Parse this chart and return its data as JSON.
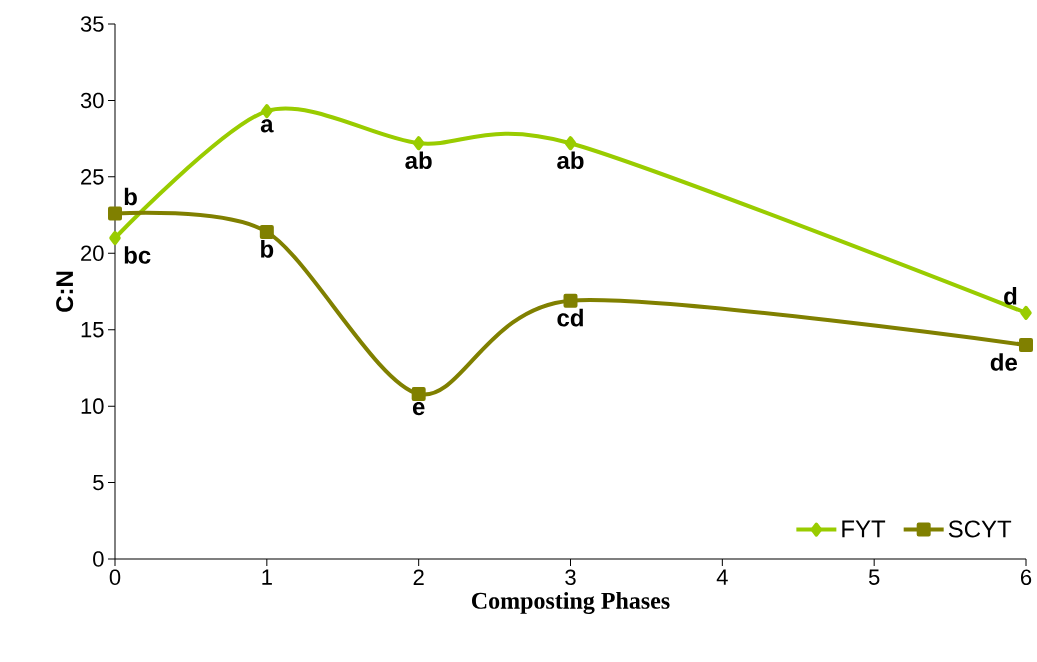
{
  "chart_data": {
    "type": "line",
    "xlabel": "Composting Phases",
    "ylabel": "C:N",
    "x": [
      0,
      1,
      2,
      3,
      6
    ],
    "series": [
      {
        "name": "FYT",
        "color": "#99cc00",
        "marker": "diamond",
        "values": [
          21.0,
          29.3,
          27.2,
          27.2,
          16.1
        ]
      },
      {
        "name": "SCYT",
        "color": "#808000",
        "marker": "square",
        "values": [
          22.6,
          21.4,
          10.8,
          16.9,
          14.0
        ]
      }
    ],
    "xlim": [
      0,
      6
    ],
    "xticks": [
      0,
      1,
      2,
      3,
      4,
      5,
      6
    ],
    "ylim": [
      0,
      35
    ],
    "yticks": [
      0,
      5,
      10,
      15,
      20,
      25,
      30,
      35
    ],
    "grid": false,
    "legend": "bottom right",
    "line_style": "solid",
    "annotations": [
      {
        "text": "b",
        "x": 0,
        "y": 22.6
      },
      {
        "text": "bc",
        "x": 0,
        "y": 21.0
      },
      {
        "text": "a",
        "x": 1,
        "y": 29.3
      },
      {
        "text": "b",
        "x": 1,
        "y": 21.4
      },
      {
        "text": "ab",
        "x": 2,
        "y": 27.2
      },
      {
        "text": "e",
        "x": 2,
        "y": 10.8
      },
      {
        "text": "ab",
        "x": 3,
        "y": 27.2
      },
      {
        "text": "cd",
        "x": 3,
        "y": 16.9
      },
      {
        "text": "d",
        "x": 6,
        "y": 16.1
      },
      {
        "text": "de",
        "x": 6,
        "y": 14.0
      }
    ]
  }
}
